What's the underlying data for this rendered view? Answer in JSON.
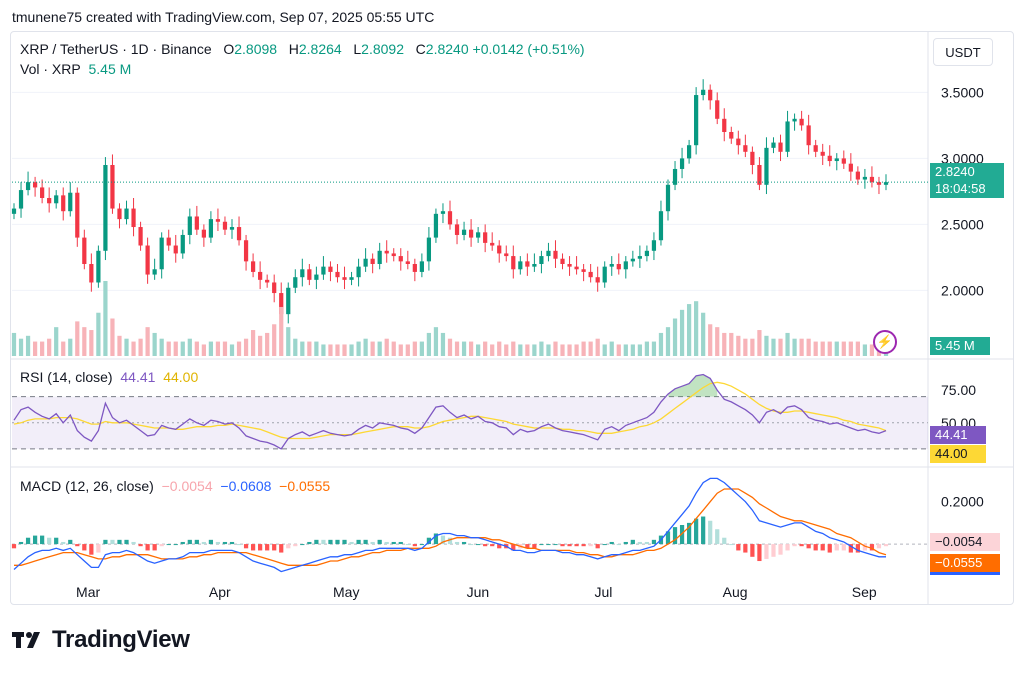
{
  "caption": "tmunene75 created with TradingView.com, Sep 07, 2025 05:55 UTC",
  "header": {
    "symbol": "XRP / TetherUS · 1D · Binance",
    "o_label": "O",
    "o_value": "2.8098",
    "h_label": "H",
    "h_value": "2.8264",
    "l_label": "L",
    "l_value": "2.8092",
    "c_label": "C",
    "c_value": "2.8240",
    "change": "+0.0142 (+0.51%)",
    "vol_label": "Vol · XRP",
    "vol_value": "5.45 M"
  },
  "currency_button": "USDT",
  "price_badge": {
    "price": "2.8240",
    "countdown": "18:04:58"
  },
  "volume_badge": "5.45 M",
  "rsi": {
    "label": "RSI (14, close)",
    "value": "44.41",
    "ma": "44.00"
  },
  "macd": {
    "label": "MACD (12, 26, close)",
    "hist": "−0.0054",
    "macd": "−0.0608",
    "signal": "−0.0555"
  },
  "brand": "TradingView",
  "colors": {
    "up": "#089981",
    "down": "#f23645",
    "rsi": "#7e57c2",
    "rsi_ma": "#fdd835",
    "macd": "#2962ff",
    "signal": "#ff6d00",
    "badge_grey": "#22ab94"
  },
  "icons": {
    "logo": "tradingview-logo-icon",
    "alert": "lightning-bolt-icon"
  },
  "chart_data": [
    {
      "type": "candlestick",
      "title": "XRP / TetherUS · 1D · Binance",
      "x_ticks": [
        "Mar",
        "Apr",
        "May",
        "Jun",
        "Jul",
        "Aug",
        "Sep"
      ],
      "y_ticks": [
        "3.5000",
        "3.0000",
        "2.5000",
        "2.0000"
      ],
      "ylim": [
        1.7,
        3.7
      ],
      "series": [
        {
          "values": [
            2.62,
            2.76,
            2.82,
            2.78,
            2.7,
            2.66,
            2.72,
            2.6,
            2.74,
            2.4,
            2.2,
            2.06,
            2.3,
            2.95,
            2.62,
            2.54,
            2.62,
            2.48,
            2.34,
            2.12,
            2.16,
            2.4,
            2.34,
            2.28,
            2.42,
            2.56,
            2.46,
            2.4,
            2.54,
            2.52,
            2.46,
            2.48,
            2.38,
            2.22,
            2.14,
            2.08,
            2.06,
            1.98,
            1.82,
            2.02,
            2.1,
            2.16,
            2.08,
            2.12,
            2.18,
            2.14,
            2.1,
            2.08,
            2.1,
            2.18,
            2.24,
            2.2,
            2.3,
            2.28,
            2.26,
            2.22,
            2.2,
            2.14,
            2.22,
            2.4,
            2.58,
            2.6,
            2.5,
            2.42,
            2.46,
            2.4,
            2.44,
            2.36,
            2.34,
            2.28,
            2.26,
            2.16,
            2.22,
            2.18,
            2.2,
            2.26,
            2.3,
            2.24,
            2.2,
            2.18,
            2.16,
            2.14,
            2.1,
            2.06,
            2.18,
            2.2,
            2.16,
            2.22,
            2.24,
            2.26,
            2.3,
            2.38,
            2.6,
            2.8,
            2.92,
            3.0,
            3.1,
            3.48,
            3.52,
            3.44,
            3.3,
            3.2,
            3.15,
            3.1,
            3.05,
            2.95,
            2.8,
            3.08,
            3.12,
            3.05,
            3.28,
            3.3,
            3.25,
            3.1,
            3.05,
            3.02,
            2.98,
            3.0,
            2.96,
            2.9,
            2.84,
            2.86,
            2.82,
            2.8,
            2.82
          ]
        }
      ]
    },
    {
      "type": "bar",
      "title": "Vol · XRP",
      "values": [
        0.8,
        0.6,
        0.7,
        0.5,
        0.5,
        0.6,
        1.0,
        0.5,
        0.6,
        1.2,
        1.0,
        0.9,
        1.5,
        2.6,
        1.3,
        0.7,
        0.6,
        0.5,
        0.6,
        1.0,
        0.8,
        0.6,
        0.5,
        0.5,
        0.5,
        0.6,
        0.5,
        0.4,
        0.5,
        0.5,
        0.5,
        0.4,
        0.5,
        0.6,
        0.9,
        0.7,
        0.8,
        1.1,
        1.7,
        1.0,
        0.6,
        0.5,
        0.5,
        0.5,
        0.4,
        0.4,
        0.4,
        0.4,
        0.4,
        0.5,
        0.6,
        0.5,
        0.5,
        0.6,
        0.5,
        0.4,
        0.4,
        0.5,
        0.5,
        0.8,
        1.0,
        0.8,
        0.6,
        0.5,
        0.5,
        0.5,
        0.4,
        0.5,
        0.4,
        0.5,
        0.4,
        0.5,
        0.4,
        0.4,
        0.4,
        0.5,
        0.4,
        0.5,
        0.4,
        0.4,
        0.4,
        0.5,
        0.5,
        0.6,
        0.4,
        0.5,
        0.4,
        0.4,
        0.4,
        0.4,
        0.5,
        0.5,
        0.8,
        1.0,
        1.3,
        1.6,
        1.8,
        1.9,
        1.5,
        1.1,
        1.0,
        0.8,
        0.8,
        0.7,
        0.6,
        0.6,
        0.9,
        0.7,
        0.6,
        0.6,
        0.8,
        0.6,
        0.6,
        0.6,
        0.5,
        0.5,
        0.5,
        0.5,
        0.5,
        0.5,
        0.5,
        0.4,
        0.4,
        0.4,
        0.5
      ]
    },
    {
      "type": "line",
      "title": "RSI (14, close)",
      "y_ticks": [
        "75.00",
        "50.00"
      ],
      "ylim": [
        20,
        95
      ],
      "series": [
        {
          "name": "RSI",
          "values": [
            52,
            60,
            62,
            58,
            55,
            53,
            57,
            50,
            56,
            44,
            39,
            36,
            44,
            65,
            54,
            50,
            52,
            48,
            44,
            40,
            41,
            48,
            46,
            45,
            49,
            53,
            50,
            48,
            52,
            51,
            49,
            50,
            46,
            40,
            38,
            36,
            35,
            33,
            30,
            38,
            41,
            43,
            40,
            42,
            44,
            42,
            41,
            40,
            41,
            45,
            48,
            46,
            50,
            49,
            48,
            46,
            45,
            42,
            46,
            54,
            62,
            63,
            58,
            54,
            56,
            53,
            55,
            51,
            50,
            47,
            46,
            41,
            45,
            43,
            44,
            47,
            49,
            46,
            44,
            43,
            42,
            41,
            39,
            37,
            45,
            47,
            44,
            48,
            50,
            52,
            54,
            58,
            66,
            72,
            76,
            78,
            80,
            86,
            87,
            84,
            75,
            68,
            66,
            63,
            60,
            56,
            50,
            58,
            60,
            57,
            62,
            63,
            60,
            54,
            52,
            51,
            49,
            50,
            48,
            46,
            44,
            45,
            43,
            42,
            44
          ]
        },
        {
          "name": "RSI-based MA",
          "values": [
            49,
            50,
            52,
            53,
            53,
            53,
            54,
            54,
            54,
            53,
            51,
            49,
            49,
            51,
            50,
            50,
            50,
            49,
            48,
            47,
            46,
            46,
            46,
            45,
            45,
            46,
            47,
            47,
            47,
            48,
            48,
            49,
            48,
            47,
            46,
            45,
            43,
            41,
            39,
            38,
            38,
            38,
            38,
            39,
            40,
            41,
            41,
            41,
            41,
            42,
            43,
            44,
            45,
            46,
            47,
            47,
            47,
            46,
            46,
            47,
            49,
            51,
            52,
            53,
            54,
            55,
            55,
            54,
            53,
            52,
            51,
            49,
            48,
            47,
            46,
            46,
            46,
            46,
            45,
            45,
            44,
            44,
            43,
            42,
            42,
            42,
            43,
            44,
            45,
            47,
            48,
            50,
            53,
            57,
            61,
            65,
            69,
            73,
            77,
            80,
            81,
            80,
            78,
            75,
            72,
            68,
            64,
            61,
            59,
            58,
            58,
            59,
            59,
            58,
            57,
            56,
            55,
            54,
            52,
            51,
            49,
            48,
            47,
            46,
            44
          ]
        }
      ]
    },
    {
      "type": "line",
      "title": "MACD (12, 26, close)",
      "y_ticks": [
        "0.2000"
      ],
      "ylim": [
        -0.16,
        0.34
      ],
      "series": [
        {
          "name": "MACD",
          "values": [
            -0.12,
            -0.09,
            -0.06,
            -0.04,
            -0.03,
            -0.03,
            -0.02,
            -0.03,
            -0.02,
            -0.05,
            -0.08,
            -0.11,
            -0.11,
            -0.05,
            -0.04,
            -0.04,
            -0.03,
            -0.04,
            -0.06,
            -0.08,
            -0.09,
            -0.08,
            -0.07,
            -0.07,
            -0.06,
            -0.04,
            -0.04,
            -0.04,
            -0.03,
            -0.03,
            -0.03,
            -0.03,
            -0.04,
            -0.06,
            -0.08,
            -0.09,
            -0.1,
            -0.11,
            -0.13,
            -0.12,
            -0.11,
            -0.1,
            -0.09,
            -0.08,
            -0.07,
            -0.06,
            -0.06,
            -0.05,
            -0.05,
            -0.04,
            -0.03,
            -0.03,
            -0.02,
            -0.02,
            -0.02,
            -0.02,
            -0.02,
            -0.03,
            -0.02,
            0.01,
            0.04,
            0.05,
            0.05,
            0.04,
            0.04,
            0.03,
            0.03,
            0.02,
            0.01,
            0.0,
            -0.01,
            -0.03,
            -0.03,
            -0.04,
            -0.04,
            -0.03,
            -0.03,
            -0.03,
            -0.04,
            -0.04,
            -0.05,
            -0.05,
            -0.06,
            -0.07,
            -0.06,
            -0.05,
            -0.05,
            -0.04,
            -0.03,
            -0.03,
            -0.02,
            -0.01,
            0.02,
            0.06,
            0.1,
            0.14,
            0.18,
            0.24,
            0.29,
            0.31,
            0.31,
            0.29,
            0.26,
            0.23,
            0.2,
            0.16,
            0.11,
            0.1,
            0.09,
            0.08,
            0.09,
            0.1,
            0.1,
            0.08,
            0.06,
            0.05,
            0.03,
            0.02,
            0.01,
            -0.01,
            -0.03,
            -0.04,
            -0.05,
            -0.06,
            -0.06
          ]
        },
        {
          "name": "Signal",
          "values": [
            -0.1,
            -0.1,
            -0.09,
            -0.08,
            -0.07,
            -0.06,
            -0.05,
            -0.04,
            -0.04,
            -0.04,
            -0.05,
            -0.06,
            -0.07,
            -0.07,
            -0.06,
            -0.06,
            -0.05,
            -0.05,
            -0.05,
            -0.05,
            -0.06,
            -0.07,
            -0.07,
            -0.07,
            -0.07,
            -0.06,
            -0.06,
            -0.05,
            -0.05,
            -0.04,
            -0.04,
            -0.04,
            -0.04,
            -0.04,
            -0.05,
            -0.06,
            -0.07,
            -0.08,
            -0.09,
            -0.1,
            -0.1,
            -0.1,
            -0.1,
            -0.1,
            -0.09,
            -0.08,
            -0.08,
            -0.07,
            -0.06,
            -0.06,
            -0.05,
            -0.04,
            -0.04,
            -0.03,
            -0.03,
            -0.03,
            -0.02,
            -0.02,
            -0.02,
            -0.02,
            -0.01,
            0.01,
            0.02,
            0.03,
            0.03,
            0.03,
            0.03,
            0.03,
            0.02,
            0.02,
            0.01,
            0.0,
            -0.01,
            -0.02,
            -0.02,
            -0.03,
            -0.03,
            -0.03,
            -0.03,
            -0.03,
            -0.04,
            -0.04,
            -0.05,
            -0.05,
            -0.06,
            -0.06,
            -0.05,
            -0.05,
            -0.05,
            -0.04,
            -0.03,
            -0.03,
            -0.02,
            0.0,
            0.02,
            0.05,
            0.08,
            0.12,
            0.16,
            0.2,
            0.24,
            0.26,
            0.26,
            0.26,
            0.24,
            0.22,
            0.19,
            0.17,
            0.15,
            0.13,
            0.12,
            0.11,
            0.11,
            0.1,
            0.09,
            0.08,
            0.07,
            0.05,
            0.04,
            0.03,
            0.01,
            -0.01,
            -0.02,
            -0.04,
            -0.05
          ]
        }
      ]
    }
  ]
}
